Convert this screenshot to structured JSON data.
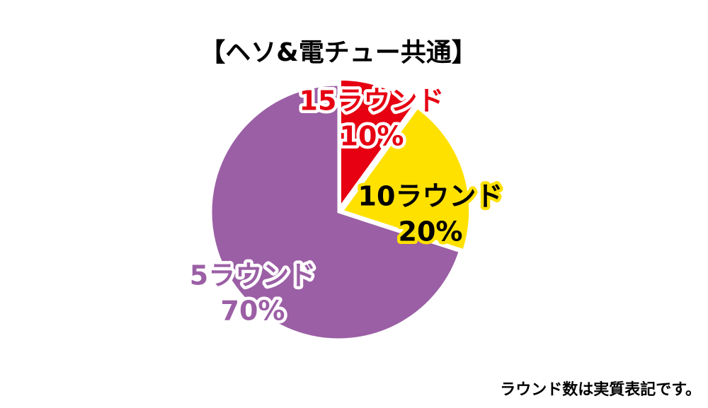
{
  "chart_data": {
    "type": "pie",
    "title": "【ヘソ&電チュー共通】",
    "categories": [
      "15ラウンド",
      "10ラウンド",
      "5ラウンド"
    ],
    "values": [
      10,
      20,
      70
    ],
    "value_labels": [
      "10%",
      "20%",
      "70%"
    ],
    "colors": [
      "#e60012",
      "#ffe100",
      "#9b5fa5"
    ],
    "note": "ラウンド数は実質表記です。"
  }
}
